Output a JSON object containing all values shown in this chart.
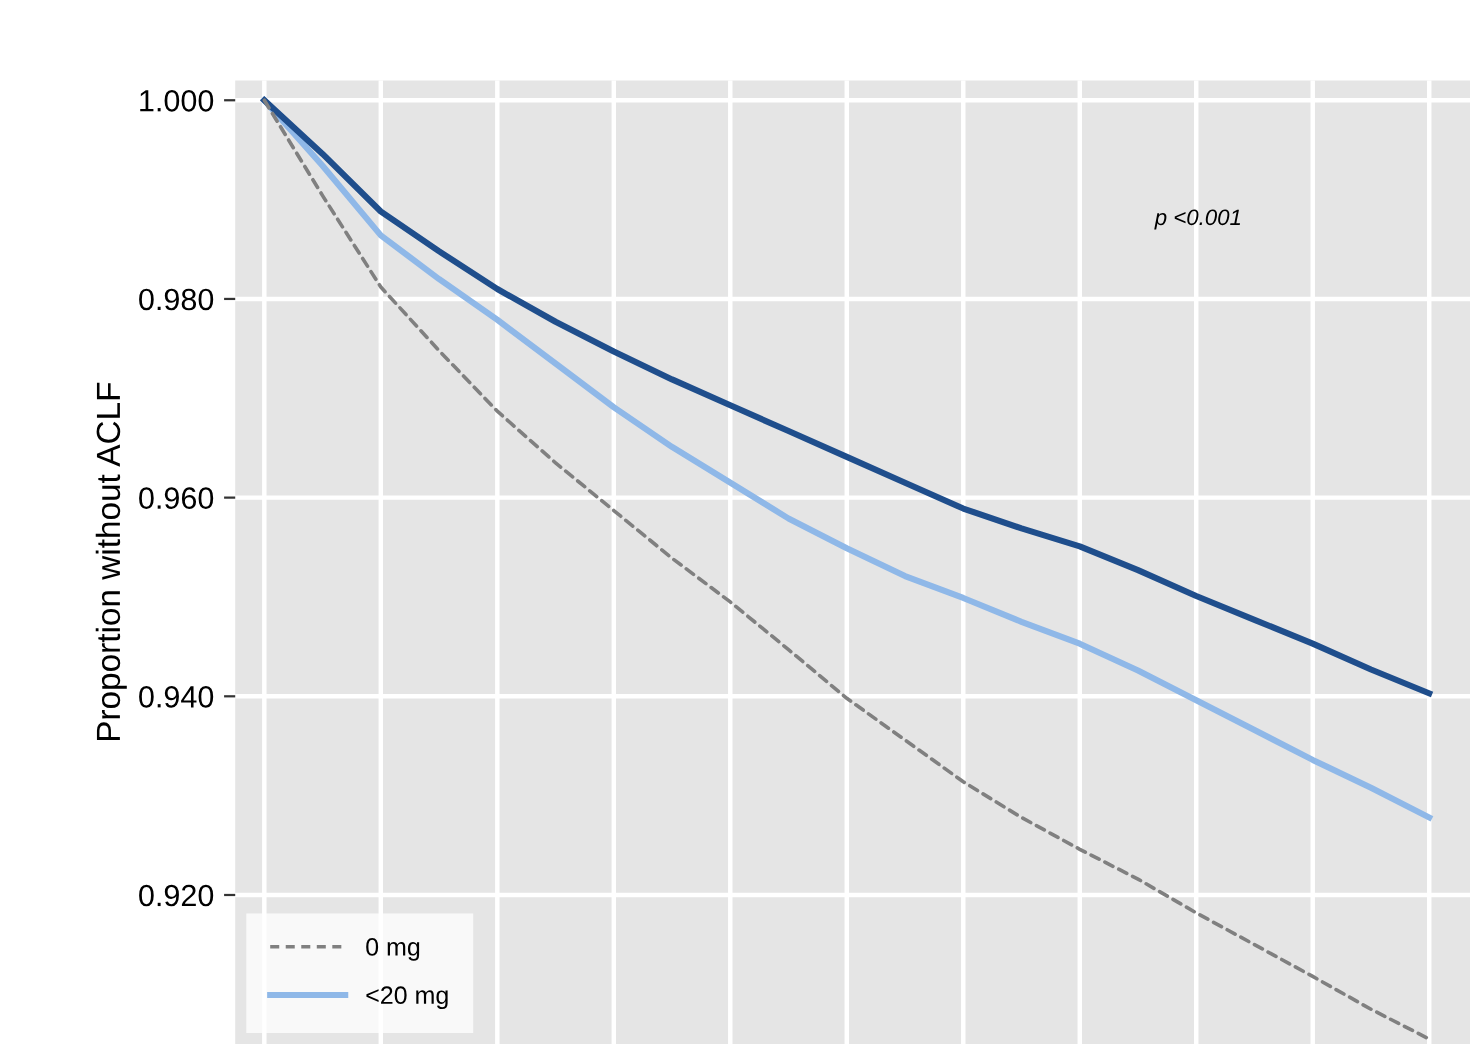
{
  "chart_data": {
    "type": "line",
    "ylabel": "Proportion without ACLF",
    "annotations": [
      "p <0.001"
    ],
    "categories": [
      null,
      null,
      null,
      null,
      null,
      null,
      null,
      null,
      null,
      null,
      null,
      null,
      null,
      null,
      null,
      null,
      null,
      null,
      null,
      null,
      null
    ],
    "ylim": [
      0.905,
      1.002
    ],
    "yticks": [
      {
        "value": 0.92,
        "label": "0.920"
      },
      {
        "value": 0.94,
        "label": "0.940"
      },
      {
        "value": 0.96,
        "label": "0.960"
      },
      {
        "value": 0.98,
        "label": "0.980"
      },
      {
        "value": 1.0,
        "label": "1.000"
      }
    ],
    "tick_labels": "y",
    "grid": true,
    "legend": "bottom left",
    "series": [
      {
        "name": "0 mg",
        "color": "#808080",
        "line_style": "dashed",
        "values": [
          1.0,
          0.9904,
          0.9812,
          0.9748,
          0.9687,
          0.9635,
          0.9587,
          0.9539,
          0.9495,
          0.9447,
          0.9398,
          0.9356,
          0.9314,
          0.9278,
          0.9246,
          0.9216,
          0.9182,
          0.915,
          0.9118,
          0.9085,
          0.9055
        ]
      },
      {
        "name": "<20 mg",
        "color": "#8fb8e8",
        "line_style": "solid",
        "values": [
          1.0,
          0.9934,
          0.9864,
          0.982,
          0.9779,
          0.9735,
          0.9691,
          0.9651,
          0.9615,
          0.9579,
          0.9549,
          0.9521,
          0.9499,
          0.9475,
          0.9453,
          0.9426,
          0.9396,
          0.9366,
          0.9336,
          0.9308,
          0.9278
        ]
      },
      {
        "color": "#1f4e8c",
        "line_style": "solid",
        "values": [
          1.0,
          0.9946,
          0.9888,
          0.9848,
          0.981,
          0.9777,
          0.9747,
          0.9719,
          0.9693,
          0.9667,
          0.9641,
          0.9615,
          0.9589,
          0.9569,
          0.9551,
          0.9527,
          0.9501,
          0.9477,
          0.9453,
          0.9427,
          0.9403
        ]
      }
    ]
  }
}
